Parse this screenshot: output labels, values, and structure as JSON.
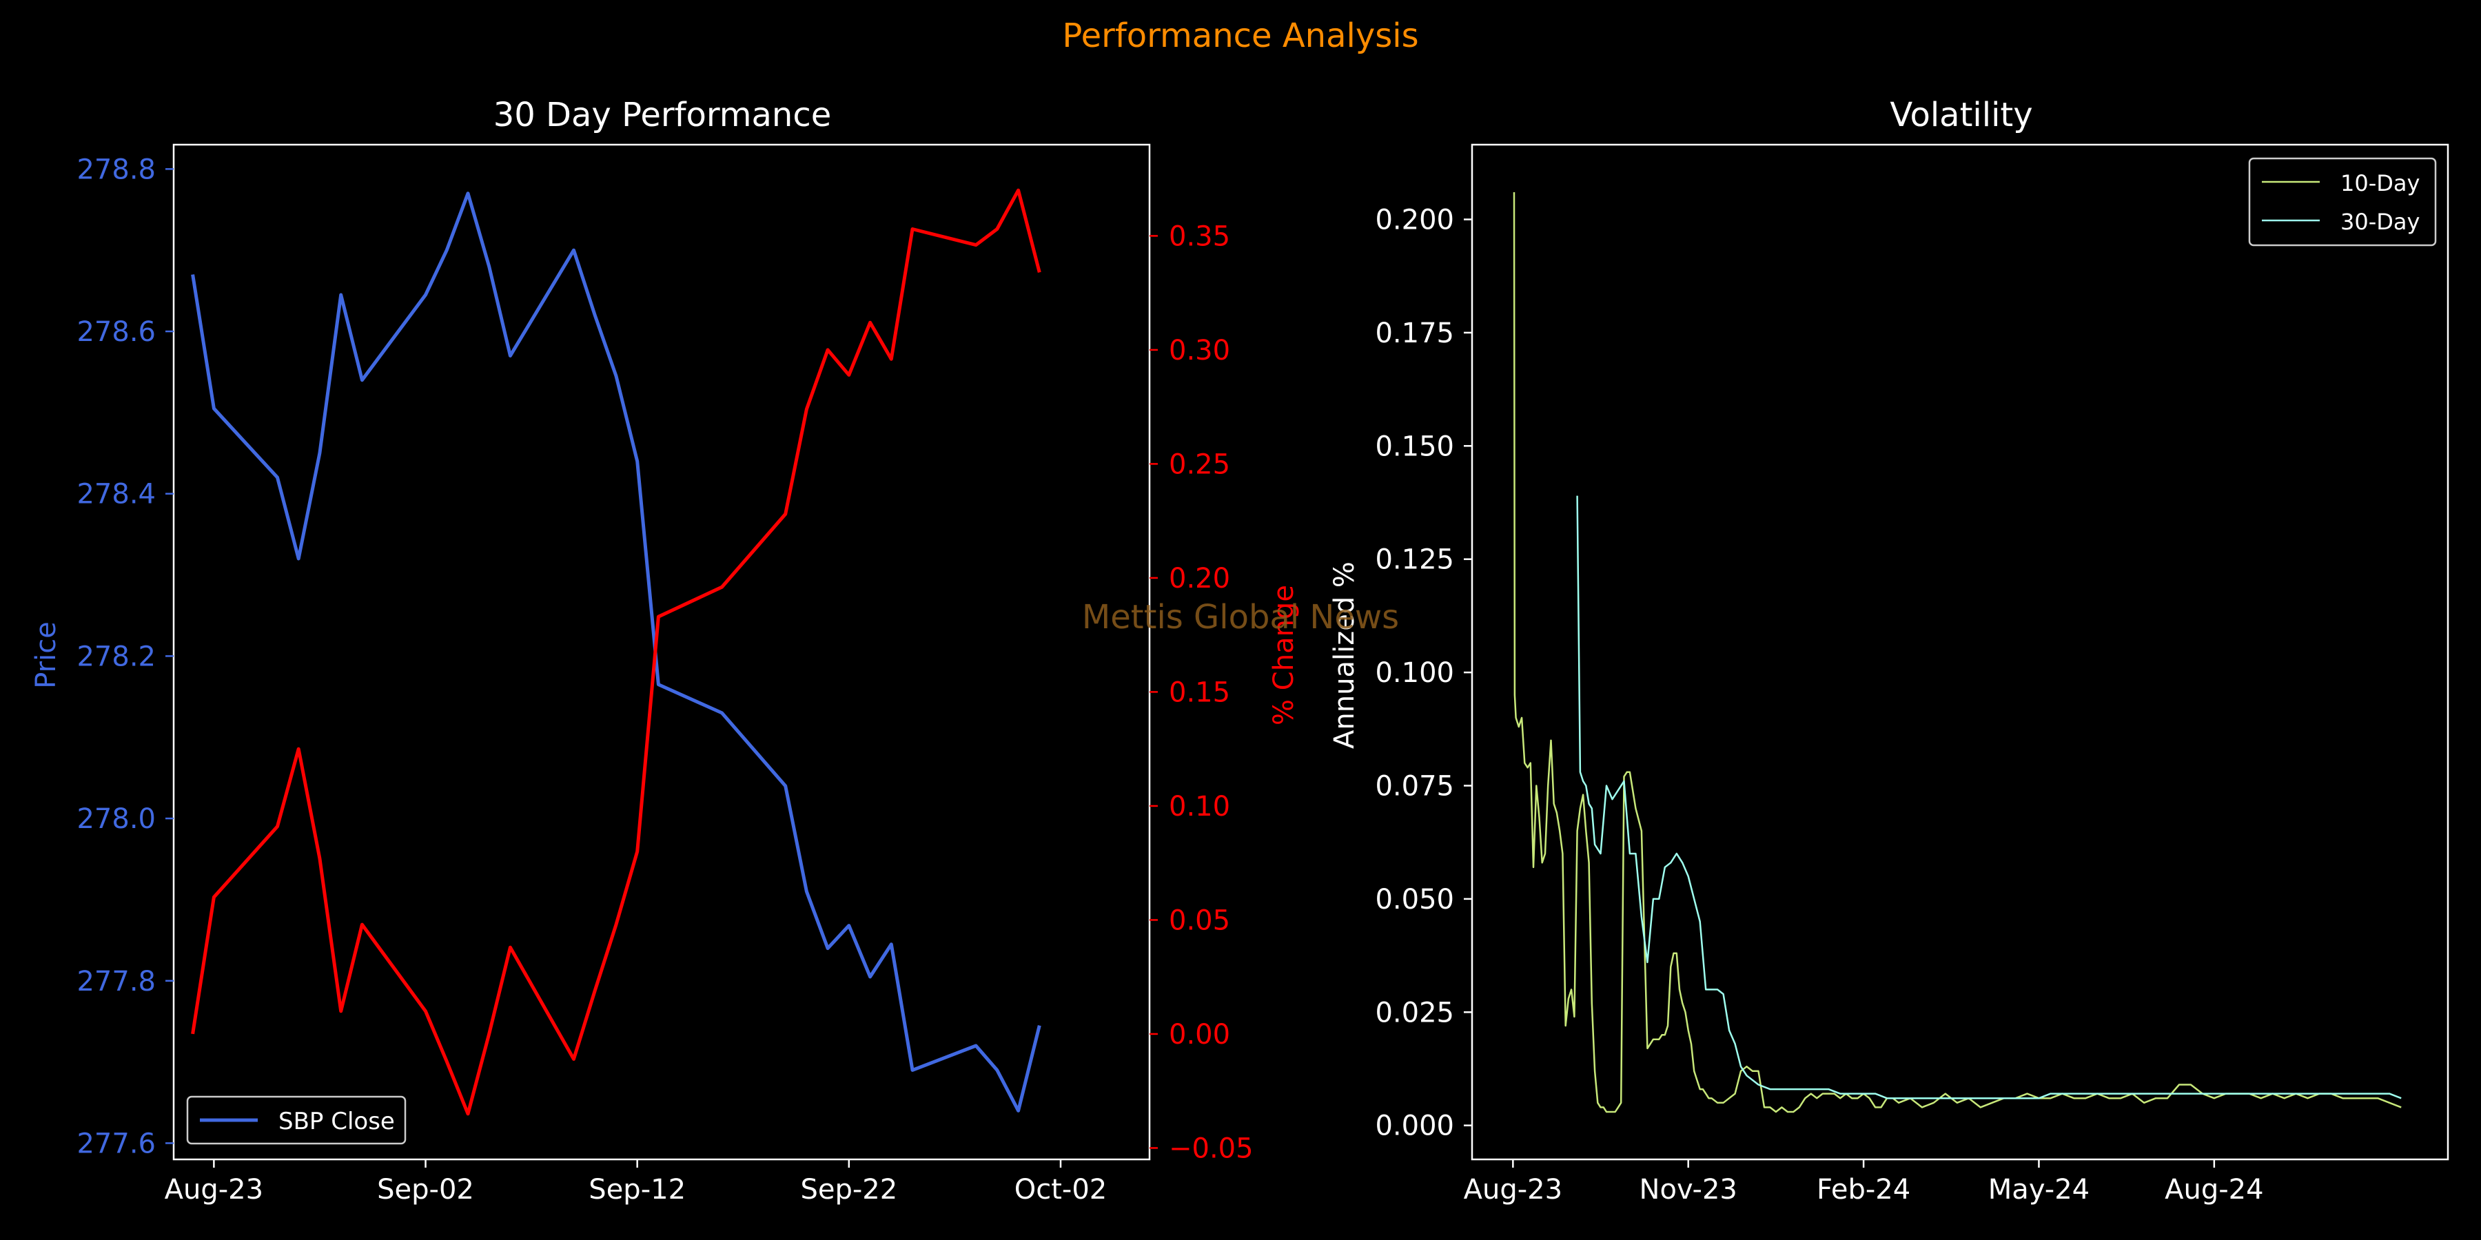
{
  "suptitle": "Performance Analysis",
  "watermark": "Mettis Global News",
  "colors": {
    "background": "#000000",
    "price": "#4169E1",
    "pct": "#FF0000",
    "suptitle": "#FF8C00",
    "vol10": "#C8E87A",
    "vol30": "#9FFFEF",
    "axis": "#FFFFFF",
    "watermark": "#8B5A1B"
  },
  "chart_data": [
    {
      "type": "line",
      "title": "30 Day Performance",
      "xlabel": "",
      "ylabel": "Price",
      "ylabel_right": "% Change",
      "ylim": [
        277.58,
        278.83
      ],
      "ylim_right": [
        -0.055,
        0.39
      ],
      "yticks": [
        277.6,
        277.8,
        278.0,
        278.2,
        278.4,
        278.6,
        278.8
      ],
      "yticklabels": [
        "277.6",
        "277.8",
        "278.0",
        "278.2",
        "278.4",
        "278.6",
        "278.8"
      ],
      "yticks_right": [
        -0.05,
        0.0,
        0.05,
        0.1,
        0.15,
        0.2,
        0.25,
        0.3,
        0.35
      ],
      "yticklabels_right": [
        "−0.05",
        "0.00",
        "0.05",
        "0.10",
        "0.15",
        "0.20",
        "0.25",
        "0.30",
        "0.35"
      ],
      "xlim": [
        -1.9,
        44.2
      ],
      "xticks": [
        0,
        10,
        20,
        30,
        40
      ],
      "xticklabels": [
        "Aug-23",
        "Sep-02",
        "Sep-12",
        "Sep-22",
        "Oct-02"
      ],
      "legend": {
        "placement": "lower-left",
        "entries": [
          "SBP Close"
        ]
      },
      "series": [
        {
          "name": "SBP Close",
          "axis": "left",
          "x": [
            -1,
            0,
            3,
            4,
            5,
            6,
            7,
            10,
            11,
            12,
            13,
            14,
            17,
            18,
            19,
            20,
            21,
            24,
            27,
            28,
            29,
            30,
            31,
            32,
            33,
            36,
            37,
            38,
            39
          ],
          "values": [
            278.67,
            278.505,
            278.42,
            278.32,
            278.45,
            278.645,
            278.54,
            278.645,
            278.7,
            278.77,
            278.68,
            278.57,
            278.7,
            278.62,
            278.545,
            278.44,
            278.165,
            278.13,
            278.04,
            277.91,
            277.84,
            277.868,
            277.805,
            277.845,
            277.69,
            277.72,
            277.69,
            277.64,
            277.745
          ]
        },
        {
          "name": "% Change",
          "axis": "right",
          "x": [
            -1,
            0,
            3,
            4,
            5,
            6,
            7,
            10,
            11,
            12,
            13,
            14,
            17,
            18,
            19,
            20,
            21,
            24,
            27,
            28,
            29,
            30,
            31,
            32,
            33,
            36,
            37,
            38,
            39
          ],
          "values": [
            0.0,
            0.06,
            0.091,
            0.125,
            0.077,
            0.01,
            0.048,
            0.01,
            -0.012,
            -0.035,
            0.0,
            0.038,
            -0.011,
            0.019,
            0.048,
            0.08,
            0.183,
            0.196,
            0.228,
            0.274,
            0.3,
            0.289,
            0.312,
            0.296,
            0.353,
            0.346,
            0.353,
            0.37,
            0.334
          ]
        }
      ]
    },
    {
      "type": "line",
      "title": "Volatility",
      "xlabel": "",
      "ylabel": "Annualized %",
      "ylim": [
        -0.0075,
        0.2165
      ],
      "yticks": [
        0.0,
        0.025,
        0.05,
        0.075,
        0.1,
        0.125,
        0.15,
        0.175,
        0.2
      ],
      "yticklabels": [
        "0.000",
        "0.025",
        "0.050",
        "0.075",
        "0.100",
        "0.125",
        "0.150",
        "0.175",
        "0.200"
      ],
      "xlim": [
        -0.3,
        16.4
      ],
      "xticks": [
        0.4,
        3.4,
        6.4,
        9.4,
        12.4
      ],
      "xticklabels": [
        "Aug-23",
        "Nov-23",
        "Feb-24",
        "May-24",
        "Aug-24"
      ],
      "legend": {
        "placement": "top-right",
        "entries": [
          "10-Day",
          "30-Day"
        ]
      },
      "series": [
        {
          "name": "10-Day",
          "x": [
            0.42,
            0.43,
            0.45,
            0.5,
            0.55,
            0.6,
            0.65,
            0.7,
            0.75,
            0.8,
            0.85,
            0.9,
            0.95,
            1.0,
            1.05,
            1.1,
            1.15,
            1.2,
            1.25,
            1.3,
            1.35,
            1.4,
            1.45,
            1.5,
            1.55,
            1.6,
            1.65,
            1.7,
            1.75,
            1.8,
            1.85,
            1.9,
            1.95,
            2.0,
            2.05,
            2.1,
            2.15,
            2.2,
            2.25,
            2.3,
            2.35,
            2.4,
            2.5,
            2.6,
            2.7,
            2.8,
            2.9,
            2.95,
            3.0,
            3.05,
            3.1,
            3.15,
            3.2,
            3.25,
            3.3,
            3.35,
            3.4,
            3.45,
            3.5,
            3.55,
            3.6,
            3.65,
            3.7,
            3.75,
            3.8,
            3.9,
            4.0,
            4.1,
            4.2,
            4.3,
            4.4,
            4.5,
            4.6,
            4.7,
            4.8,
            4.9,
            5.0,
            5.1,
            5.2,
            5.3,
            5.4,
            5.5,
            5.6,
            5.7,
            5.8,
            5.9,
            6.0,
            6.1,
            6.2,
            6.3,
            6.4,
            6.5,
            6.6,
            6.7,
            6.8,
            6.9,
            7.0,
            7.2,
            7.4,
            7.6,
            7.8,
            8.0,
            8.2,
            8.4,
            8.6,
            8.8,
            9.0,
            9.2,
            9.4,
            9.6,
            9.8,
            10.0,
            10.2,
            10.4,
            10.6,
            10.8,
            11.0,
            11.2,
            11.4,
            11.6,
            11.8,
            12.0,
            12.2,
            12.4,
            12.6,
            12.8,
            13.0,
            13.2,
            13.4,
            13.6,
            13.8,
            14.0,
            14.2,
            14.4,
            14.6,
            14.8,
            15.0,
            15.2,
            15.4,
            15.6
          ],
          "values": [
            0.206,
            0.095,
            0.09,
            0.088,
            0.09,
            0.08,
            0.079,
            0.08,
            0.057,
            0.075,
            0.068,
            0.058,
            0.06,
            0.075,
            0.085,
            0.071,
            0.069,
            0.065,
            0.06,
            0.022,
            0.028,
            0.03,
            0.024,
            0.065,
            0.07,
            0.073,
            0.065,
            0.058,
            0.027,
            0.012,
            0.005,
            0.004,
            0.004,
            0.003,
            0.003,
            0.003,
            0.003,
            0.004,
            0.005,
            0.077,
            0.078,
            0.078,
            0.07,
            0.065,
            0.017,
            0.019,
            0.019,
            0.02,
            0.02,
            0.022,
            0.035,
            0.038,
            0.038,
            0.03,
            0.027,
            0.025,
            0.021,
            0.018,
            0.012,
            0.01,
            0.008,
            0.008,
            0.007,
            0.006,
            0.006,
            0.005,
            0.005,
            0.006,
            0.007,
            0.012,
            0.013,
            0.012,
            0.012,
            0.004,
            0.004,
            0.003,
            0.004,
            0.003,
            0.003,
            0.004,
            0.006,
            0.007,
            0.006,
            0.007,
            0.007,
            0.007,
            0.006,
            0.007,
            0.006,
            0.006,
            0.007,
            0.006,
            0.004,
            0.004,
            0.006,
            0.006,
            0.005,
            0.006,
            0.004,
            0.005,
            0.007,
            0.005,
            0.006,
            0.004,
            0.005,
            0.006,
            0.006,
            0.007,
            0.006,
            0.006,
            0.007,
            0.006,
            0.006,
            0.007,
            0.006,
            0.006,
            0.007,
            0.005,
            0.006,
            0.006,
            0.009,
            0.009,
            0.007,
            0.006,
            0.007,
            0.007,
            0.007,
            0.006,
            0.007,
            0.006,
            0.007,
            0.006,
            0.007,
            0.007,
            0.006,
            0.006,
            0.006,
            0.006,
            0.005,
            0.004
          ],
          "note_x_units": "month index from 2023-08 (tick labels Aug-23 … Aug-24)"
        },
        {
          "name": "30-Day",
          "x": [
            1.5,
            1.55,
            1.6,
            1.65,
            1.7,
            1.75,
            1.8,
            1.9,
            2.0,
            2.1,
            2.2,
            2.3,
            2.4,
            2.5,
            2.6,
            2.7,
            2.8,
            2.9,
            3.0,
            3.1,
            3.2,
            3.3,
            3.4,
            3.5,
            3.6,
            3.7,
            3.8,
            3.9,
            4.0,
            4.1,
            4.2,
            4.3,
            4.4,
            4.6,
            4.8,
            5.0,
            5.2,
            5.4,
            5.6,
            5.8,
            6.0,
            6.2,
            6.4,
            6.6,
            6.8,
            7.0,
            7.2,
            7.4,
            7.6,
            7.8,
            8.0,
            8.2,
            8.4,
            8.6,
            8.8,
            9.0,
            9.2,
            9.4,
            9.6,
            9.8,
            10.0,
            10.2,
            10.4,
            10.6,
            10.8,
            11.0,
            11.2,
            11.4,
            11.6,
            11.8,
            12.0,
            12.2,
            12.4,
            12.6,
            12.8,
            13.0,
            13.2,
            13.4,
            13.6,
            13.8,
            14.0,
            14.2,
            14.4,
            14.6,
            14.8,
            15.0,
            15.2,
            15.4,
            15.6
          ],
          "values": [
            0.139,
            0.078,
            0.076,
            0.075,
            0.071,
            0.07,
            0.062,
            0.06,
            0.075,
            0.072,
            0.074,
            0.076,
            0.06,
            0.06,
            0.046,
            0.036,
            0.05,
            0.05,
            0.057,
            0.058,
            0.06,
            0.058,
            0.055,
            0.05,
            0.045,
            0.03,
            0.03,
            0.03,
            0.029,
            0.021,
            0.018,
            0.013,
            0.011,
            0.009,
            0.008,
            0.008,
            0.008,
            0.008,
            0.008,
            0.008,
            0.007,
            0.007,
            0.007,
            0.007,
            0.006,
            0.006,
            0.006,
            0.006,
            0.006,
            0.006,
            0.006,
            0.006,
            0.006,
            0.006,
            0.006,
            0.006,
            0.006,
            0.006,
            0.007,
            0.007,
            0.007,
            0.007,
            0.007,
            0.007,
            0.007,
            0.007,
            0.007,
            0.007,
            0.007,
            0.007,
            0.007,
            0.007,
            0.007,
            0.007,
            0.007,
            0.007,
            0.007,
            0.007,
            0.007,
            0.007,
            0.007,
            0.007,
            0.007,
            0.007,
            0.007,
            0.007,
            0.007,
            0.007,
            0.006
          ]
        }
      ]
    }
  ]
}
